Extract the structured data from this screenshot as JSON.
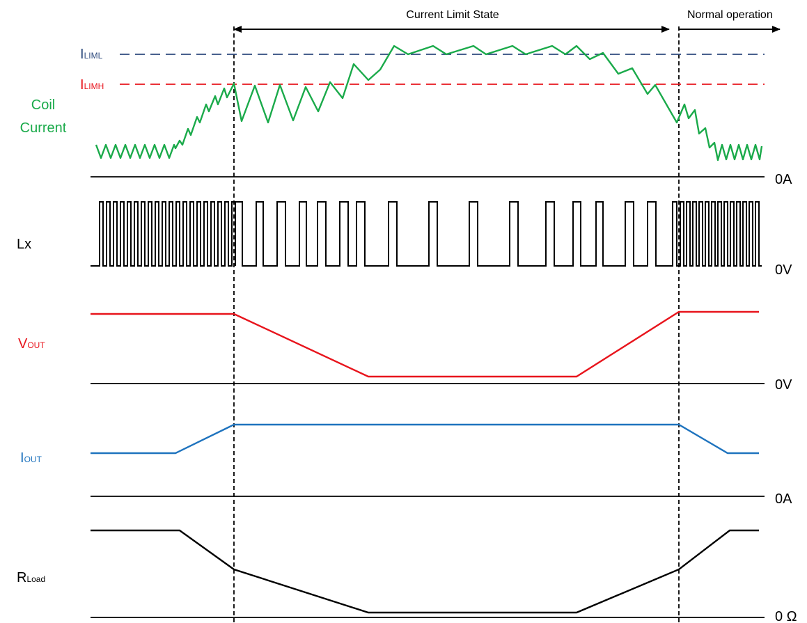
{
  "header": {
    "current_limit_state": "Current Limit State",
    "normal_operation": "Normal operation"
  },
  "thresholds": {
    "liml": {
      "main": "I",
      "sub": "LIML"
    },
    "limh": {
      "main": "I",
      "sub": "LIMH"
    }
  },
  "traces": {
    "coil": {
      "label_line1": "Coil",
      "label_line2": "Current",
      "zero": "0A"
    },
    "lx": {
      "label": "Lx",
      "zero": "0V"
    },
    "vout": {
      "main": "V",
      "sub": "OUT",
      "zero": "0V"
    },
    "iout": {
      "main": "I",
      "sub": "OUT",
      "zero": "0A"
    },
    "rload": {
      "main": "R",
      "sub": "Load",
      "zero": "0 Ω"
    }
  },
  "colors": {
    "coil": "#1aaa4a",
    "vout": "#e8141c",
    "iout": "#1e73be",
    "liml": "#2e4a7d",
    "limh": "#e8141c",
    "axis": "#000000"
  }
}
